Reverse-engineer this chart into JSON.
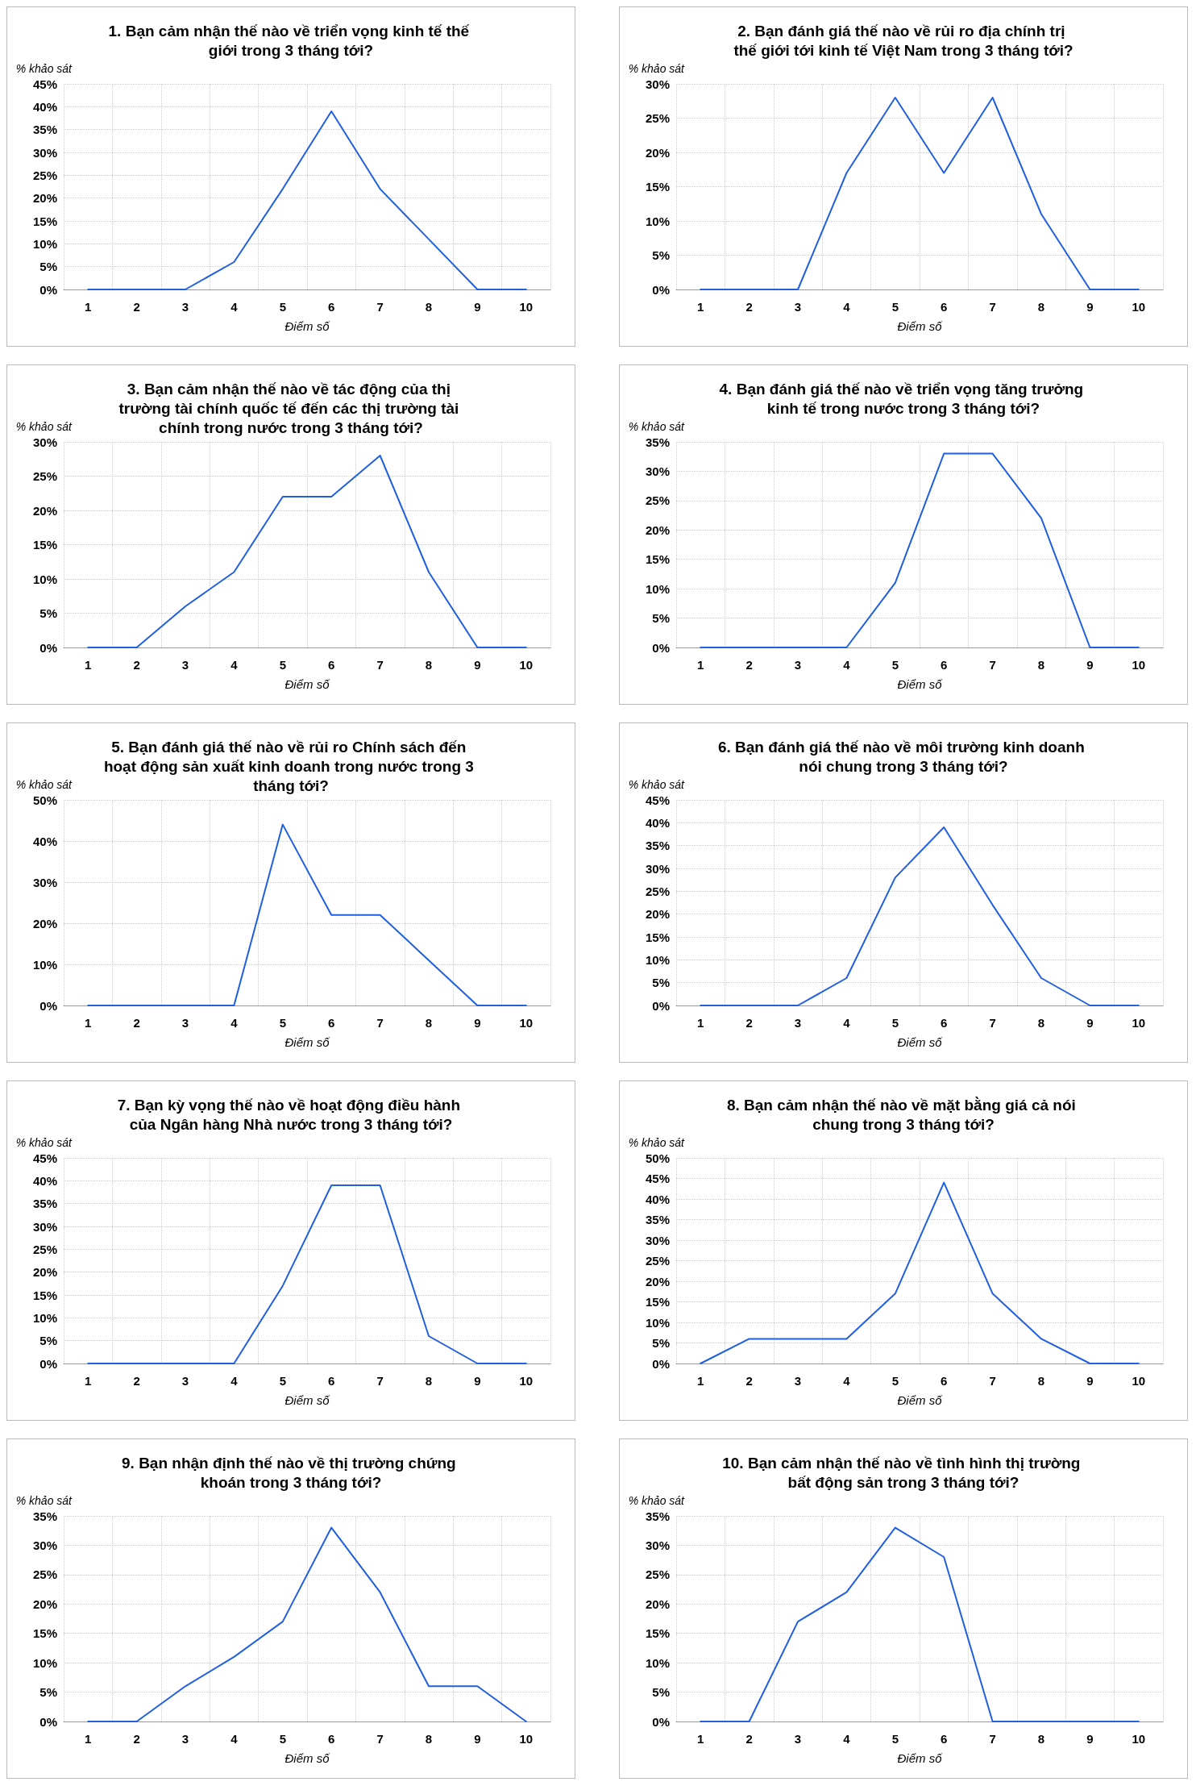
{
  "chart_data": [
    {
      "type": "line",
      "title": "1. Bạn cảm nhận thế nào về triển vọng kinh tế thế giới trong 3 tháng tới?",
      "ylabel": "% khảo sát",
      "xlabel": "Điểm số",
      "categories": [
        "1",
        "2",
        "3",
        "4",
        "5",
        "6",
        "7",
        "8",
        "9",
        "10"
      ],
      "series": [
        {
          "color": "#1f5fe0",
          "values": [
            0,
            0,
            0,
            6,
            22,
            39,
            22,
            11,
            0,
            0
          ]
        }
      ],
      "ylim": [
        0,
        45
      ],
      "yticks": [
        {
          "value": 0,
          "label": "0%"
        },
        {
          "value": 5,
          "label": "5%"
        },
        {
          "value": 10,
          "label": "10%"
        },
        {
          "value": 15,
          "label": "15%"
        },
        {
          "value": 20,
          "label": "20%"
        },
        {
          "value": 25,
          "label": "25%"
        },
        {
          "value": 30,
          "label": "30%"
        },
        {
          "value": 35,
          "label": "35%"
        },
        {
          "value": 40,
          "label": "40%"
        },
        {
          "value": 45,
          "label": "45%"
        }
      ],
      "grid": true,
      "marker": "none",
      "line_style": "solid"
    },
    {
      "type": "line",
      "title": "2. Bạn đánh giá thế nào về rủi ro địa chính trị thế giới tới kinh tế Việt Nam trong 3 tháng tới?",
      "ylabel": "% khảo sát",
      "xlabel": "Điểm số",
      "categories": [
        "1",
        "2",
        "3",
        "4",
        "5",
        "6",
        "7",
        "8",
        "9",
        "10"
      ],
      "series": [
        {
          "color": "#1f5fe0",
          "values": [
            0,
            0,
            0,
            17,
            28,
            17,
            28,
            11,
            0,
            0
          ]
        }
      ],
      "ylim": [
        0,
        30
      ],
      "yticks": [
        {
          "value": 0,
          "label": "0%"
        },
        {
          "value": 5,
          "label": "5%"
        },
        {
          "value": 10,
          "label": "10%"
        },
        {
          "value": 15,
          "label": "15%"
        },
        {
          "value": 20,
          "label": "20%"
        },
        {
          "value": 25,
          "label": "25%"
        },
        {
          "value": 30,
          "label": "30%"
        }
      ],
      "grid": true,
      "marker": "none",
      "line_style": "solid"
    },
    {
      "type": "line",
      "title": "3. Bạn cảm nhận thế nào về tác động của thị trường tài chính quốc tế đến các thị trường tài chính trong nước trong 3 tháng tới?",
      "ylabel": "% khảo sát",
      "xlabel": "Điểm số",
      "categories": [
        "1",
        "2",
        "3",
        "4",
        "5",
        "6",
        "7",
        "8",
        "9",
        "10"
      ],
      "series": [
        {
          "color": "#1f5fe0",
          "values": [
            0,
            0,
            6,
            11,
            22,
            22,
            28,
            11,
            0,
            0
          ]
        }
      ],
      "ylim": [
        0,
        30
      ],
      "yticks": [
        {
          "value": 0,
          "label": "0%"
        },
        {
          "value": 5,
          "label": "5%"
        },
        {
          "value": 10,
          "label": "10%"
        },
        {
          "value": 15,
          "label": "15%"
        },
        {
          "value": 20,
          "label": "20%"
        },
        {
          "value": 25,
          "label": "25%"
        },
        {
          "value": 30,
          "label": "30%"
        }
      ],
      "grid": true,
      "marker": "none",
      "line_style": "solid"
    },
    {
      "type": "line",
      "title": "4. Bạn đánh giá thế nào về triển vọng tăng trưởng kinh tế trong nước trong 3 tháng tới?",
      "ylabel": "% khảo sát",
      "xlabel": "Điểm số",
      "categories": [
        "1",
        "2",
        "3",
        "4",
        "5",
        "6",
        "7",
        "8",
        "9",
        "10"
      ],
      "series": [
        {
          "color": "#1f5fe0",
          "values": [
            0,
            0,
            0,
            0,
            11,
            33,
            33,
            22,
            0,
            0
          ]
        }
      ],
      "ylim": [
        0,
        35
      ],
      "yticks": [
        {
          "value": 0,
          "label": "0%"
        },
        {
          "value": 5,
          "label": "5%"
        },
        {
          "value": 10,
          "label": "10%"
        },
        {
          "value": 15,
          "label": "15%"
        },
        {
          "value": 20,
          "label": "20%"
        },
        {
          "value": 25,
          "label": "25%"
        },
        {
          "value": 30,
          "label": "30%"
        },
        {
          "value": 35,
          "label": "35%"
        }
      ],
      "grid": true,
      "marker": "none",
      "line_style": "solid"
    },
    {
      "type": "line",
      "title": "5. Bạn đánh giá thế nào về rủi ro Chính sách đến hoạt động sản xuất kinh doanh trong nước trong 3 tháng tới?",
      "ylabel": "% khảo sát",
      "xlabel": "Điểm số",
      "categories": [
        "1",
        "2",
        "3",
        "4",
        "5",
        "6",
        "7",
        "8",
        "9",
        "10"
      ],
      "series": [
        {
          "color": "#1f5fe0",
          "values": [
            0,
            0,
            0,
            0,
            44,
            22,
            22,
            11,
            0,
            0
          ]
        }
      ],
      "ylim": [
        0,
        50
      ],
      "yticks": [
        {
          "value": 0,
          "label": "0%"
        },
        {
          "value": 10,
          "label": "10%"
        },
        {
          "value": 20,
          "label": "20%"
        },
        {
          "value": 30,
          "label": "30%"
        },
        {
          "value": 40,
          "label": "40%"
        },
        {
          "value": 50,
          "label": "50%"
        }
      ],
      "grid": true,
      "marker": "none",
      "line_style": "solid"
    },
    {
      "type": "line",
      "title": "6. Bạn đánh giá thế nào về môi trường kinh doanh nói chung trong 3 tháng tới?",
      "ylabel": "% khảo sát",
      "xlabel": "Điểm số",
      "categories": [
        "1",
        "2",
        "3",
        "4",
        "5",
        "6",
        "7",
        "8",
        "9",
        "10"
      ],
      "series": [
        {
          "color": "#1f5fe0",
          "values": [
            0,
            0,
            0,
            6,
            28,
            39,
            22,
            6,
            0,
            0
          ]
        }
      ],
      "ylim": [
        0,
        45
      ],
      "yticks": [
        {
          "value": 0,
          "label": "0%"
        },
        {
          "value": 5,
          "label": "5%"
        },
        {
          "value": 10,
          "label": "10%"
        },
        {
          "value": 15,
          "label": "15%"
        },
        {
          "value": 20,
          "label": "20%"
        },
        {
          "value": 25,
          "label": "25%"
        },
        {
          "value": 30,
          "label": "30%"
        },
        {
          "value": 35,
          "label": "35%"
        },
        {
          "value": 40,
          "label": "40%"
        },
        {
          "value": 45,
          "label": "45%"
        }
      ],
      "grid": true,
      "marker": "none",
      "line_style": "solid"
    },
    {
      "type": "line",
      "title": "7. Bạn kỳ vọng thế nào về hoạt động điều hành của Ngân hàng Nhà nước trong 3 tháng tới?",
      "ylabel": "% khảo sát",
      "xlabel": "Điểm số",
      "categories": [
        "1",
        "2",
        "3",
        "4",
        "5",
        "6",
        "7",
        "8",
        "9",
        "10"
      ],
      "series": [
        {
          "color": "#1f5fe0",
          "values": [
            0,
            0,
            0,
            0,
            17,
            39,
            39,
            6,
            0,
            0
          ]
        }
      ],
      "ylim": [
        0,
        45
      ],
      "yticks": [
        {
          "value": 0,
          "label": "0%"
        },
        {
          "value": 5,
          "label": "5%"
        },
        {
          "value": 10,
          "label": "10%"
        },
        {
          "value": 15,
          "label": "15%"
        },
        {
          "value": 20,
          "label": "20%"
        },
        {
          "value": 25,
          "label": "25%"
        },
        {
          "value": 30,
          "label": "30%"
        },
        {
          "value": 35,
          "label": "35%"
        },
        {
          "value": 40,
          "label": "40%"
        },
        {
          "value": 45,
          "label": "45%"
        }
      ],
      "grid": true,
      "marker": "none",
      "line_style": "solid"
    },
    {
      "type": "line",
      "title": "8. Bạn cảm nhận thế nào về mặt bằng giá cả nói chung trong 3 tháng tới?",
      "ylabel": "% khảo sát",
      "xlabel": "Điểm số",
      "categories": [
        "1",
        "2",
        "3",
        "4",
        "5",
        "6",
        "7",
        "8",
        "9",
        "10"
      ],
      "series": [
        {
          "color": "#1f5fe0",
          "values": [
            0,
            6,
            6,
            6,
            17,
            44,
            17,
            6,
            0,
            0
          ]
        }
      ],
      "ylim": [
        0,
        50
      ],
      "yticks": [
        {
          "value": 0,
          "label": "0%"
        },
        {
          "value": 5,
          "label": "5%"
        },
        {
          "value": 10,
          "label": "10%"
        },
        {
          "value": 15,
          "label": "15%"
        },
        {
          "value": 20,
          "label": "20%"
        },
        {
          "value": 25,
          "label": "25%"
        },
        {
          "value": 30,
          "label": "30%"
        },
        {
          "value": 35,
          "label": "35%"
        },
        {
          "value": 40,
          "label": "40%"
        },
        {
          "value": 45,
          "label": "45%"
        },
        {
          "value": 50,
          "label": "50%"
        }
      ],
      "grid": true,
      "marker": "none",
      "line_style": "solid"
    },
    {
      "type": "line",
      "title": "9. Bạn nhận định thế nào về thị trường chứng khoán trong 3 tháng tới?",
      "ylabel": "% khảo sát",
      "xlabel": "Điểm số",
      "categories": [
        "1",
        "2",
        "3",
        "4",
        "5",
        "6",
        "7",
        "8",
        "9",
        "10"
      ],
      "series": [
        {
          "color": "#1f5fe0",
          "values": [
            0,
            0,
            6,
            11,
            17,
            33,
            22,
            6,
            6,
            0
          ]
        }
      ],
      "ylim": [
        0,
        35
      ],
      "yticks": [
        {
          "value": 0,
          "label": "0%"
        },
        {
          "value": 5,
          "label": "5%"
        },
        {
          "value": 10,
          "label": "10%"
        },
        {
          "value": 15,
          "label": "15%"
        },
        {
          "value": 20,
          "label": "20%"
        },
        {
          "value": 25,
          "label": "25%"
        },
        {
          "value": 30,
          "label": "30%"
        },
        {
          "value": 35,
          "label": "35%"
        }
      ],
      "grid": true,
      "marker": "none",
      "line_style": "solid"
    },
    {
      "type": "line",
      "title": "10. Bạn cảm nhận thế nào về tình hình thị trường bất động sản trong 3 tháng tới?",
      "ylabel": "% khảo sát",
      "xlabel": "Điểm số",
      "categories": [
        "1",
        "2",
        "3",
        "4",
        "5",
        "6",
        "7",
        "8",
        "9",
        "10"
      ],
      "series": [
        {
          "color": "#1f5fe0",
          "values": [
            0,
            0,
            17,
            22,
            33,
            28,
            0,
            0,
            0,
            0
          ]
        }
      ],
      "ylim": [
        0,
        35
      ],
      "yticks": [
        {
          "value": 0,
          "label": "0%"
        },
        {
          "value": 5,
          "label": "5%"
        },
        {
          "value": 10,
          "label": "10%"
        },
        {
          "value": 15,
          "label": "15%"
        },
        {
          "value": 20,
          "label": "20%"
        },
        {
          "value": 25,
          "label": "25%"
        },
        {
          "value": 30,
          "label": "30%"
        },
        {
          "value": 35,
          "label": "35%"
        }
      ],
      "grid": true,
      "marker": "none",
      "line_style": "solid"
    }
  ]
}
